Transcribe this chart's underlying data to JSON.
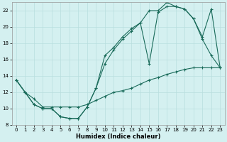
{
  "xlabel": "Humidex (Indice chaleur)",
  "background_color": "#d4f0f0",
  "grid_color": "#b8dede",
  "line_color": "#1a6b5a",
  "xlim": [
    -0.5,
    23.5
  ],
  "ylim": [
    8,
    23
  ],
  "yticks": [
    8,
    10,
    12,
    14,
    16,
    18,
    20,
    22
  ],
  "xticks": [
    0,
    1,
    2,
    3,
    4,
    5,
    6,
    7,
    8,
    9,
    10,
    11,
    12,
    13,
    14,
    15,
    16,
    17,
    18,
    19,
    20,
    21,
    22,
    23
  ],
  "series1_x": [
    0,
    1,
    2,
    3,
    4,
    5,
    6,
    7,
    8,
    9,
    10,
    11,
    12,
    13,
    14,
    15,
    16,
    17,
    18,
    19,
    20,
    21,
    22,
    23
  ],
  "series1_y": [
    13.5,
    12.0,
    11.2,
    10.2,
    10.2,
    10.2,
    10.2,
    10.2,
    10.5,
    11.0,
    11.5,
    12.0,
    12.2,
    12.5,
    13.0,
    13.5,
    13.8,
    14.2,
    14.5,
    14.8,
    15.0,
    15.0,
    15.0,
    15.0
  ],
  "series2_x": [
    0,
    1,
    2,
    3,
    4,
    5,
    6,
    7,
    8,
    9,
    10,
    11,
    12,
    13,
    14,
    15,
    16,
    17,
    18,
    19,
    20,
    21,
    22,
    23
  ],
  "series2_y": [
    13.5,
    12.0,
    10.5,
    10.0,
    10.0,
    9.0,
    8.8,
    8.8,
    10.2,
    12.5,
    15.5,
    17.2,
    18.5,
    19.5,
    20.5,
    15.5,
    21.8,
    22.5,
    22.5,
    22.2,
    21.0,
    18.5,
    16.5,
    15.0
  ],
  "series3_x": [
    0,
    1,
    2,
    3,
    4,
    5,
    6,
    7,
    8,
    9,
    10,
    11,
    12,
    13,
    14,
    15,
    16,
    17,
    18,
    19,
    20,
    21,
    22,
    23
  ],
  "series3_y": [
    13.5,
    12.0,
    10.5,
    10.0,
    10.0,
    9.0,
    8.8,
    8.8,
    10.2,
    12.5,
    16.5,
    17.5,
    18.8,
    19.8,
    20.5,
    22.0,
    22.0,
    23.0,
    22.5,
    22.2,
    21.0,
    18.8,
    22.2,
    15.0
  ]
}
